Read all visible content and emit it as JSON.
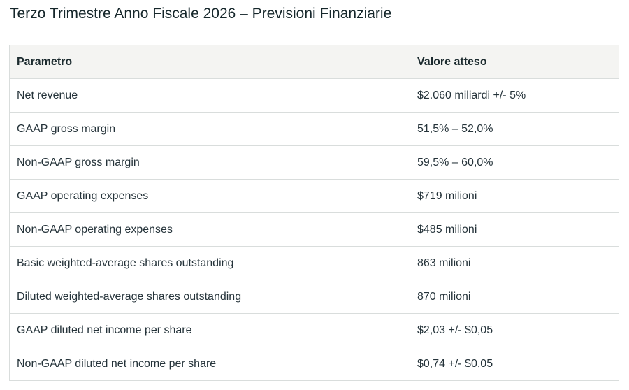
{
  "page": {
    "title": "Terzo Trimestre Anno Fiscale 2026 – Previsioni Finanziarie"
  },
  "table": {
    "headers": {
      "param": "Parametro",
      "value": "Valore atteso"
    },
    "rows": [
      {
        "param": "Net revenue",
        "value": "$2.060 miliardi +/- 5%"
      },
      {
        "param": "GAAP gross margin",
        "value": "51,5% – 52,0%"
      },
      {
        "param": "Non-GAAP gross margin",
        "value": "59,5% – 60,0%"
      },
      {
        "param": "GAAP operating expenses",
        "value": "$719 milioni"
      },
      {
        "param": "Non-GAAP operating expenses",
        "value": "$485 milioni"
      },
      {
        "param": "Basic weighted-average shares outstanding",
        "value": "863 milioni"
      },
      {
        "param": "Diluted weighted-average shares outstanding",
        "value": "870 milioni"
      },
      {
        "param": "GAAP diluted net income per share",
        "value": "$2,03 +/- $0,05"
      },
      {
        "param": "Non-GAAP diluted net income per share",
        "value": "$0,74 +/- $0,05"
      }
    ]
  },
  "colors": {
    "header_background": "#f4f4f2",
    "border": "#d9dddc",
    "text": "#25333a"
  }
}
